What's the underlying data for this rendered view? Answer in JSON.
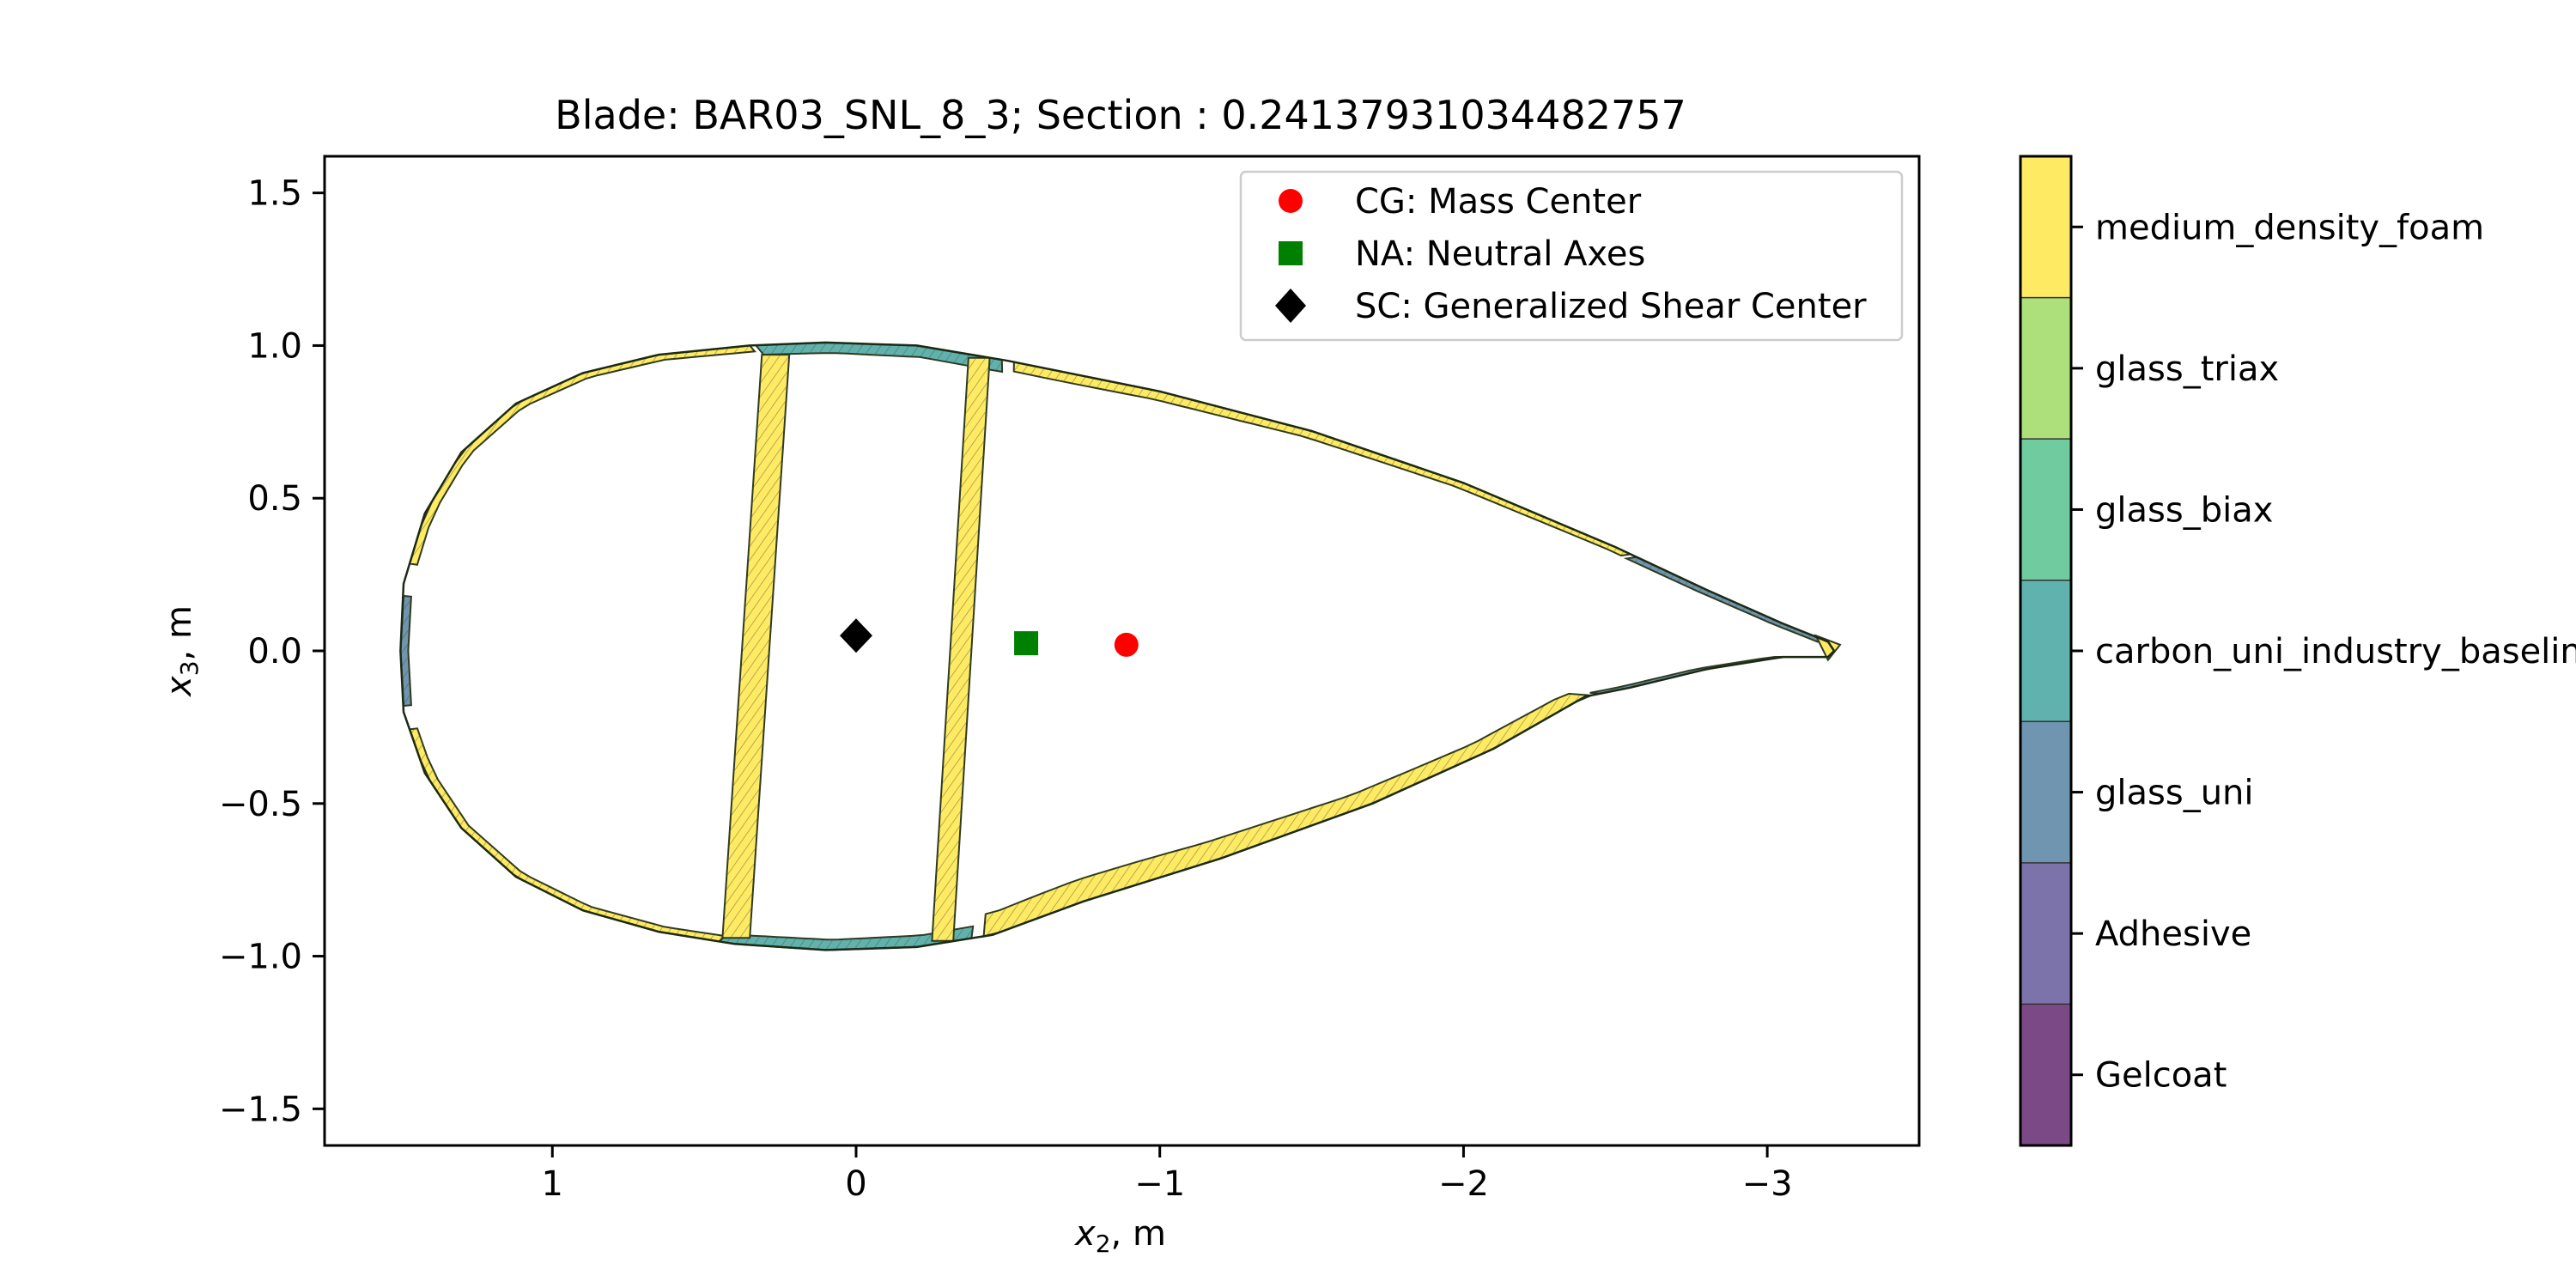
{
  "chart_data": {
    "type": "scatter",
    "title": "Blade: BAR03_SNL_8_3; Section : 0.24137931034482757",
    "xlabel": {
      "main": "x",
      "sub": "2",
      "unit": ", m"
    },
    "ylabel": {
      "main": "x",
      "sub": "3",
      "unit": ", m"
    },
    "xlim": [
      1.75,
      -3.5
    ],
    "ylim": [
      -1.62,
      1.62
    ],
    "xticks": [
      {
        "value": 1,
        "label": "1"
      },
      {
        "value": 0,
        "label": "0"
      },
      {
        "value": -1,
        "label": "−1"
      },
      {
        "value": -2,
        "label": "−2"
      },
      {
        "value": -3,
        "label": "−3"
      }
    ],
    "yticks": [
      {
        "value": 1.5,
        "label": "1.5"
      },
      {
        "value": 1.0,
        "label": "1.0"
      },
      {
        "value": 0.5,
        "label": "0.5"
      },
      {
        "value": 0.0,
        "label": "0.0"
      },
      {
        "value": -0.5,
        "label": "−0.5"
      },
      {
        "value": -1.0,
        "label": "−1.0"
      },
      {
        "value": -1.5,
        "label": "−1.5"
      }
    ],
    "grid": false,
    "legend_position": "top-right",
    "points": [
      {
        "name": "CG: Mass Center",
        "x": -0.89,
        "y": 0.02,
        "marker": "circle",
        "color": "#ff0000"
      },
      {
        "name": "NA: Neutral Axes",
        "x": -0.56,
        "y": 0.025,
        "marker": "square",
        "color": "#008000"
      },
      {
        "name": "SC: Generalized Shear Center",
        "x": 0.0,
        "y": 0.05,
        "marker": "diamond",
        "color": "#000000"
      }
    ],
    "materials": [
      {
        "name": "Gelcoat",
        "color": "#7b4a86"
      },
      {
        "name": "Adhesive",
        "color": "#7b73a9"
      },
      {
        "name": "glass_uni",
        "color": "#6f95b0"
      },
      {
        "name": "carbon_uni_industry_baseline",
        "color": "#60b2ae"
      },
      {
        "name": "glass_biax",
        "color": "#70cc9e"
      },
      {
        "name": "glass_triax",
        "color": "#addf7a"
      },
      {
        "name": "medium_density_foam",
        "color": "#feea63"
      }
    ],
    "outline": {
      "upper": [
        [
          1.5,
          0.0
        ],
        [
          1.49,
          0.22
        ],
        [
          1.42,
          0.45
        ],
        [
          1.3,
          0.65
        ],
        [
          1.12,
          0.81
        ],
        [
          0.9,
          0.91
        ],
        [
          0.65,
          0.97
        ],
        [
          0.35,
          1.0
        ],
        [
          0.1,
          1.01
        ],
        [
          -0.2,
          1.0
        ],
        [
          -0.5,
          0.95
        ],
        [
          -1.0,
          0.85
        ],
        [
          -1.5,
          0.72
        ],
        [
          -2.0,
          0.55
        ],
        [
          -2.5,
          0.34
        ],
        [
          -2.8,
          0.2
        ],
        [
          -3.05,
          0.09
        ],
        [
          -3.2,
          0.03
        ],
        [
          -3.22,
          0.0
        ]
      ],
      "lower": [
        [
          1.5,
          0.0
        ],
        [
          1.49,
          -0.2
        ],
        [
          1.42,
          -0.4
        ],
        [
          1.3,
          -0.58
        ],
        [
          1.12,
          -0.74
        ],
        [
          0.9,
          -0.85
        ],
        [
          0.65,
          -0.92
        ],
        [
          0.4,
          -0.96
        ],
        [
          0.1,
          -0.98
        ],
        [
          -0.2,
          -0.97
        ],
        [
          -0.45,
          -0.93
        ],
        [
          -0.75,
          -0.82
        ],
        [
          -1.2,
          -0.68
        ],
        [
          -1.7,
          -0.5
        ],
        [
          -2.1,
          -0.32
        ],
        [
          -2.4,
          -0.15
        ],
        [
          -2.55,
          -0.12
        ],
        [
          -2.8,
          -0.06
        ],
        [
          -3.05,
          -0.02
        ],
        [
          -3.2,
          -0.02
        ],
        [
          -3.22,
          0.0
        ]
      ]
    },
    "webs": [
      [
        [
          0.31,
          0.97
        ],
        [
          0.22,
          0.97
        ],
        [
          0.35,
          -0.94
        ],
        [
          0.44,
          -0.94
        ]
      ],
      [
        [
          -0.37,
          0.96
        ],
        [
          -0.44,
          0.96
        ],
        [
          -0.32,
          -0.95
        ],
        [
          -0.25,
          -0.95
        ]
      ]
    ]
  }
}
